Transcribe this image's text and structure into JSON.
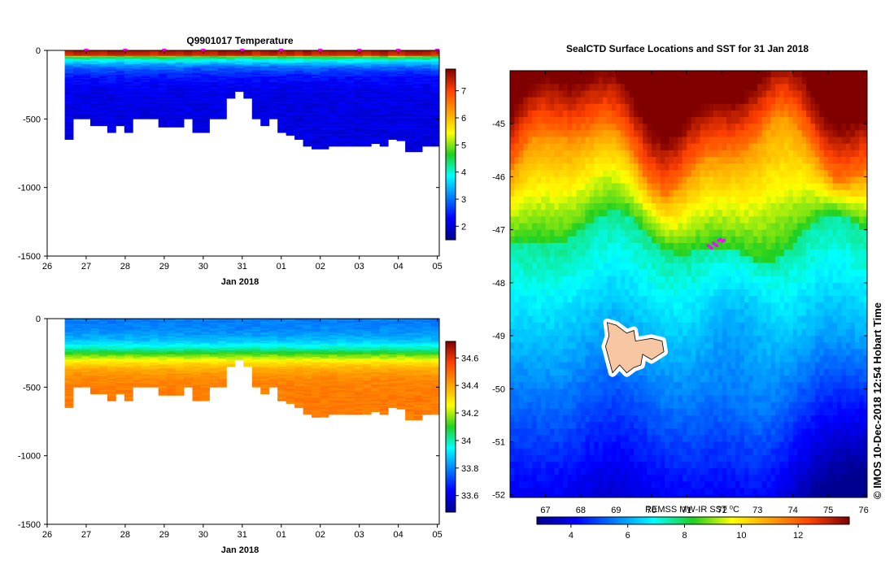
{
  "chart_data": [
    {
      "id": "temperature",
      "type": "heatmap",
      "title": "Q9901017  Temperature",
      "xlabel": "Jan 2018",
      "x_ticks": [
        "26",
        "27",
        "28",
        "29",
        "30",
        "31",
        "01",
        "02",
        "03",
        "04",
        "05"
      ],
      "xlim": [
        26,
        36.05
      ],
      "y_ticks": [
        "0",
        "-500",
        "-1000",
        "-1500"
      ],
      "ylim": [
        -1500,
        0
      ],
      "colorbar_ticks": [
        "2",
        "3",
        "4",
        "5",
        "6",
        "7"
      ],
      "colorbar_range": [
        1.5,
        7.8
      ],
      "surface_value": 7.4,
      "deep_value": 2.0,
      "profile_markers": [
        27,
        28,
        29,
        30,
        31,
        32,
        33,
        34,
        35,
        36
      ],
      "profile_depths": [
        650,
        500,
        500,
        550,
        550,
        600,
        550,
        600,
        500,
        500,
        500,
        560,
        560,
        560,
        500,
        600,
        600,
        500,
        500,
        350,
        300,
        350,
        500,
        550,
        500,
        600,
        620,
        650,
        700,
        720,
        720,
        700,
        700,
        700,
        700,
        700,
        680,
        700,
        650,
        660,
        740,
        740,
        700,
        700
      ],
      "series": []
    },
    {
      "id": "salinity",
      "type": "heatmap",
      "title": "",
      "xlabel": "Jan 2018",
      "x_ticks": [
        "26",
        "27",
        "28",
        "29",
        "30",
        "31",
        "01",
        "02",
        "03",
        "04",
        "05"
      ],
      "xlim": [
        26,
        36.05
      ],
      "y_ticks": [
        "0",
        "-500",
        "-1000",
        "-1500"
      ],
      "ylim": [
        -1500,
        0
      ],
      "colorbar_ticks": [
        "33.6",
        "33.8",
        "34",
        "34.2",
        "34.4",
        "34.6"
      ],
      "colorbar_range": [
        33.48,
        34.72
      ],
      "surface_value": 33.78,
      "deep_value": 34.47,
      "profile_depths": [
        650,
        500,
        500,
        550,
        550,
        600,
        550,
        600,
        500,
        500,
        500,
        560,
        560,
        560,
        500,
        600,
        600,
        500,
        500,
        350,
        300,
        350,
        500,
        550,
        500,
        600,
        620,
        650,
        700,
        720,
        720,
        700,
        700,
        700,
        700,
        700,
        680,
        700,
        650,
        660,
        740,
        740,
        700,
        700
      ],
      "series": []
    },
    {
      "id": "sst_map",
      "type": "heatmap",
      "title": "SealCTD Surface Locations and SST for 31 Jan 2018",
      "x_ticks": [
        "67",
        "68",
        "69",
        "70",
        "71",
        "72",
        "73",
        "74",
        "75",
        "76"
      ],
      "xlim": [
        66.0,
        76.1
      ],
      "y_ticks": [
        "-45",
        "-46",
        "-47",
        "-48",
        "-49",
        "-50",
        "-51",
        "-52"
      ],
      "ylim": [
        -52.05,
        -44.0
      ],
      "colorbar_label": "REMSS MW-IR SST ⁰C",
      "colorbar_ticks": [
        "4",
        "6",
        "8",
        "10",
        "12"
      ],
      "colorbar_range": [
        2.8,
        13.8
      ],
      "seal_positions": [
        {
          "lon": 71.6,
          "lat": -47.3
        },
        {
          "lon": 71.75,
          "lat": -47.25
        },
        {
          "lon": 71.9,
          "lat": -47.2
        },
        {
          "lon": 72.0,
          "lat": -47.22
        },
        {
          "lon": 71.85,
          "lat": -47.3
        },
        {
          "lon": 71.7,
          "lat": -47.35
        },
        {
          "lon": 71.95,
          "lat": -47.18
        },
        {
          "lon": 71.8,
          "lat": -47.28
        },
        {
          "lon": 71.65,
          "lat": -47.32
        },
        {
          "lon": 72.05,
          "lat": -47.2
        }
      ],
      "island": [
        {
          "lon": 68.75,
          "lat": -48.75
        },
        {
          "lon": 69.0,
          "lat": -48.8
        },
        {
          "lon": 69.3,
          "lat": -48.95
        },
        {
          "lon": 69.5,
          "lat": -48.9
        },
        {
          "lon": 69.55,
          "lat": -49.1
        },
        {
          "lon": 70.0,
          "lat": -49.05
        },
        {
          "lon": 70.3,
          "lat": -49.1
        },
        {
          "lon": 70.35,
          "lat": -49.3
        },
        {
          "lon": 70.0,
          "lat": -49.45
        },
        {
          "lon": 69.75,
          "lat": -49.35
        },
        {
          "lon": 69.7,
          "lat": -49.55
        },
        {
          "lon": 69.5,
          "lat": -49.6
        },
        {
          "lon": 69.3,
          "lat": -49.7
        },
        {
          "lon": 69.1,
          "lat": -49.55
        },
        {
          "lon": 68.9,
          "lat": -49.7
        },
        {
          "lon": 68.8,
          "lat": -49.45
        },
        {
          "lon": 68.7,
          "lat": -49.2
        },
        {
          "lon": 68.8,
          "lat": -49.0
        }
      ]
    }
  ],
  "credit": "© IMOS 10-Dec-2018 12:54 Hobart Time"
}
